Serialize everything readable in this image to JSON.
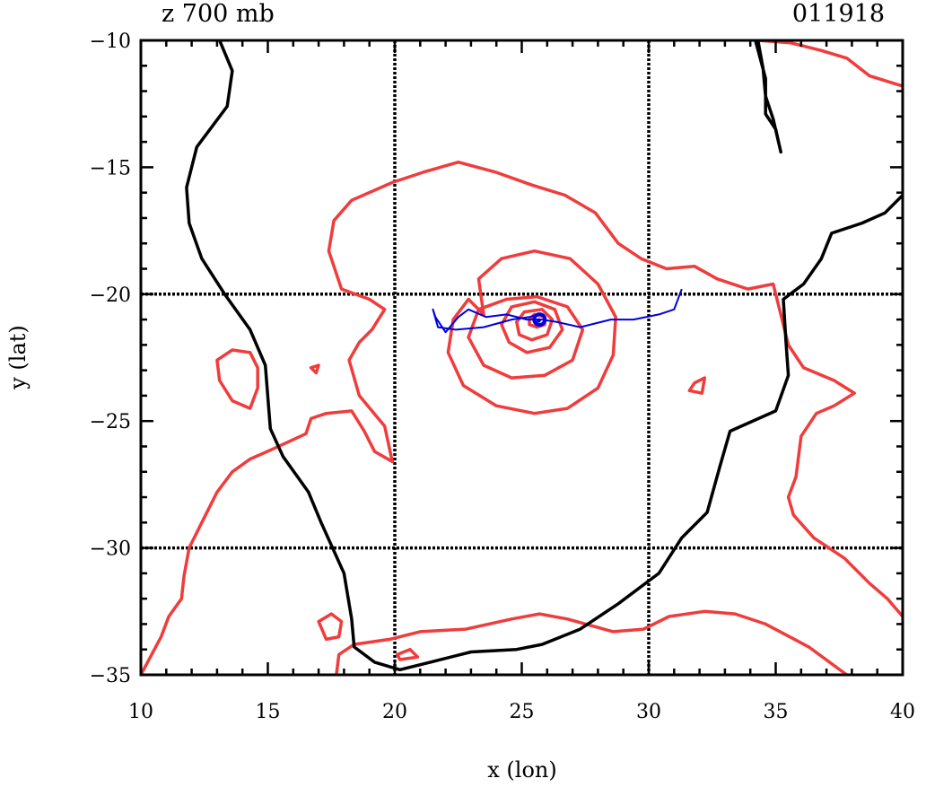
{
  "chart_data": {
    "type": "line",
    "title_left": "z 700 mb",
    "title_right": "011918",
    "xlabel": "x (lon)",
    "ylabel": "y (lat)",
    "xlim": [
      10,
      40
    ],
    "ylim": [
      -35,
      -10
    ],
    "xticks": [
      10,
      15,
      20,
      25,
      30,
      35,
      40
    ],
    "yticks": [
      -10,
      -15,
      -20,
      -25,
      -30,
      -35
    ],
    "grid_x": [
      20,
      30
    ],
    "grid_y": [
      -20,
      -30
    ],
    "colors": {
      "coast": "#000000",
      "contour": "#f03c3c",
      "track": "#0000dd",
      "grid": "#000000"
    },
    "coastline": [
      [
        [
          13.1,
          -10
        ],
        [
          13.6,
          -11.2
        ],
        [
          13.4,
          -12.6
        ],
        [
          12.2,
          -14.2
        ],
        [
          11.8,
          -15.8
        ],
        [
          11.9,
          -17.2
        ],
        [
          12.4,
          -18.6
        ],
        [
          13.3,
          -20
        ],
        [
          14.3,
          -21.4
        ],
        [
          14.9,
          -22.8
        ],
        [
          15.1,
          -25.3
        ],
        [
          15.6,
          -26.4
        ],
        [
          16.6,
          -27.8
        ],
        [
          17.1,
          -29
        ],
        [
          18.0,
          -31
        ],
        [
          18.3,
          -32.8
        ],
        [
          18.4,
          -33.9
        ],
        [
          19.2,
          -34.5
        ],
        [
          20.2,
          -34.8
        ],
        [
          21.4,
          -34.5
        ],
        [
          23.0,
          -34.1
        ],
        [
          24.8,
          -34.0
        ],
        [
          25.8,
          -33.8
        ],
        [
          27.3,
          -33.2
        ],
        [
          28.8,
          -32.2
        ],
        [
          30.4,
          -31
        ],
        [
          31.3,
          -29.6
        ],
        [
          32.3,
          -28.6
        ],
        [
          32.8,
          -26.8
        ],
        [
          33.2,
          -25.4
        ],
        [
          35.0,
          -24.6
        ],
        [
          35.5,
          -23.2
        ],
        [
          35.4,
          -21.8
        ],
        [
          35.3,
          -20.2
        ],
        [
          36.1,
          -19.6
        ],
        [
          36.8,
          -18.6
        ],
        [
          37.2,
          -17.6
        ],
        [
          38.4,
          -17.2
        ],
        [
          39.3,
          -16.8
        ],
        [
          40.0,
          -16.1
        ]
      ],
      [
        [
          34.2,
          -10
        ],
        [
          34.6,
          -11.5
        ],
        [
          34.6,
          -12.9
        ],
        [
          35.0,
          -13.5
        ],
        [
          35.2,
          -14.4
        ],
        [
          34.9,
          -13.1
        ],
        [
          34.6,
          -12.2
        ],
        [
          34.5,
          -11.1
        ],
        [
          34.3,
          -10
        ]
      ]
    ],
    "contours": [
      [
        [
          23.5,
          -20.8
        ],
        [
          23.3,
          -19.4
        ],
        [
          24.2,
          -18.6
        ],
        [
          25.5,
          -18.3
        ],
        [
          26.9,
          -18.6
        ],
        [
          28.0,
          -19.6
        ],
        [
          28.7,
          -20.9
        ],
        [
          28.6,
          -22.4
        ],
        [
          28.0,
          -23.7
        ],
        [
          26.8,
          -24.5
        ],
        [
          25.5,
          -24.7
        ],
        [
          24.0,
          -24.4
        ],
        [
          22.7,
          -23.6
        ],
        [
          22.1,
          -22.3
        ],
        [
          22.3,
          -21.0
        ],
        [
          22.9,
          -20.2
        ],
        [
          23.5,
          -20.8
        ]
      ],
      [
        [
          22.9,
          -21.7
        ],
        [
          23.3,
          -20.6
        ],
        [
          24.4,
          -20.2
        ],
        [
          25.6,
          -20.1
        ],
        [
          26.8,
          -20.5
        ],
        [
          27.4,
          -21.4
        ],
        [
          27.0,
          -22.6
        ],
        [
          25.9,
          -23.2
        ],
        [
          24.6,
          -23.3
        ],
        [
          23.5,
          -22.8
        ],
        [
          22.9,
          -21.7
        ]
      ],
      [
        [
          24.2,
          -21.2
        ],
        [
          24.6,
          -20.5
        ],
        [
          25.5,
          -20.3
        ],
        [
          26.3,
          -20.6
        ],
        [
          26.6,
          -21.4
        ],
        [
          26.1,
          -22.1
        ],
        [
          25.2,
          -22.3
        ],
        [
          24.5,
          -21.9
        ],
        [
          24.2,
          -21.2
        ]
      ],
      [
        [
          24.8,
          -21.1
        ],
        [
          25.1,
          -20.7
        ],
        [
          25.8,
          -20.6
        ],
        [
          26.2,
          -21.0
        ],
        [
          26.0,
          -21.6
        ],
        [
          25.4,
          -21.8
        ],
        [
          24.9,
          -21.6
        ],
        [
          24.8,
          -21.1
        ]
      ],
      [
        [
          25.3,
          -21.0
        ],
        [
          25.5,
          -20.8
        ],
        [
          25.9,
          -20.9
        ],
        [
          25.9,
          -21.2
        ],
        [
          25.6,
          -21.3
        ],
        [
          25.3,
          -21.2
        ],
        [
          25.3,
          -21.0
        ]
      ],
      [
        [
          19.9,
          -26.6
        ],
        [
          19.2,
          -26.2
        ],
        [
          18.8,
          -25.4
        ],
        [
          18.3,
          -24.6
        ],
        [
          17.3,
          -24.7
        ],
        [
          16.7,
          -24.9
        ],
        [
          16.5,
          -25.5
        ],
        [
          15.2,
          -26.1
        ],
        [
          14.3,
          -26.5
        ],
        [
          13.6,
          -27.0
        ],
        [
          13.0,
          -27.8
        ],
        [
          12.4,
          -29.0
        ],
        [
          11.9,
          -30.0
        ],
        [
          11.7,
          -31.1
        ],
        [
          11.6,
          -32.0
        ],
        [
          11.1,
          -32.7
        ],
        [
          10.8,
          -33.5
        ],
        [
          10.0,
          -35.0
        ]
      ],
      [
        [
          19.9,
          -26.6
        ],
        [
          19.6,
          -25.2
        ],
        [
          18.6,
          -24.0
        ],
        [
          18.2,
          -22.6
        ],
        [
          18.6,
          -21.9
        ],
        [
          19.1,
          -21.4
        ],
        [
          19.6,
          -20.6
        ],
        [
          19.0,
          -20.2
        ],
        [
          17.9,
          -19.8
        ],
        [
          17.4,
          -18.3
        ],
        [
          17.6,
          -17.1
        ],
        [
          18.3,
          -16.3
        ],
        [
          19.9,
          -15.6
        ],
        [
          21.1,
          -15.2
        ],
        [
          22.5,
          -14.8
        ],
        [
          24.0,
          -15.2
        ],
        [
          25.4,
          -15.7
        ],
        [
          26.7,
          -16.1
        ],
        [
          27.9,
          -16.8
        ],
        [
          28.8,
          -18.0
        ],
        [
          29.7,
          -18.6
        ],
        [
          30.7,
          -19.0
        ],
        [
          31.8,
          -18.9
        ],
        [
          32.7,
          -19.4
        ],
        [
          33.9,
          -19.8
        ],
        [
          34.9,
          -19.6
        ],
        [
          35.2,
          -20.8
        ],
        [
          35.5,
          -22.0
        ],
        [
          36.1,
          -22.9
        ],
        [
          37.3,
          -23.4
        ],
        [
          38.1,
          -23.9
        ],
        [
          37.3,
          -24.4
        ],
        [
          36.6,
          -24.7
        ],
        [
          36.0,
          -25.6
        ],
        [
          35.8,
          -27.2
        ],
        [
          35.5,
          -28.0
        ],
        [
          35.7,
          -28.7
        ],
        [
          36.5,
          -29.6
        ],
        [
          37.7,
          -30.4
        ],
        [
          38.7,
          -31.4
        ],
        [
          39.4,
          -32.0
        ],
        [
          40.0,
          -32.7
        ]
      ],
      [
        [
          17.7,
          -35.0
        ],
        [
          17.8,
          -34.2
        ],
        [
          18.4,
          -33.8
        ],
        [
          19.8,
          -33.6
        ],
        [
          21.0,
          -33.3
        ],
        [
          22.8,
          -33.2
        ],
        [
          24.6,
          -32.8
        ],
        [
          25.7,
          -32.6
        ],
        [
          26.8,
          -32.8
        ],
        [
          28.6,
          -33.3
        ],
        [
          29.8,
          -33.2
        ],
        [
          30.8,
          -32.7
        ],
        [
          32.2,
          -32.5
        ],
        [
          33.4,
          -32.6
        ],
        [
          34.6,
          -33.0
        ],
        [
          36.3,
          -33.9
        ],
        [
          37.8,
          -35.0
        ]
      ],
      [
        [
          34.3,
          -10.0
        ],
        [
          35.6,
          -10.1
        ],
        [
          36.8,
          -10.4
        ],
        [
          37.8,
          -10.7
        ],
        [
          38.7,
          -11.4
        ],
        [
          40.0,
          -11.8
        ]
      ],
      [
        [
          14.3,
          -22.3
        ],
        [
          13.6,
          -22.2
        ],
        [
          13.0,
          -22.6
        ],
        [
          13.1,
          -23.4
        ],
        [
          13.6,
          -24.2
        ],
        [
          14.3,
          -24.5
        ],
        [
          14.6,
          -23.7
        ],
        [
          14.6,
          -22.9
        ],
        [
          14.3,
          -22.3
        ]
      ],
      [
        [
          17.5,
          -32.6
        ],
        [
          17.0,
          -32.9
        ],
        [
          17.3,
          -33.6
        ],
        [
          17.8,
          -33.5
        ],
        [
          17.9,
          -32.9
        ],
        [
          17.5,
          -32.6
        ]
      ],
      [
        [
          20.1,
          -34.2
        ],
        [
          20.6,
          -34.0
        ],
        [
          20.9,
          -34.3
        ],
        [
          20.2,
          -34.4
        ],
        [
          20.1,
          -34.2
        ]
      ],
      [
        [
          31.8,
          -23.5
        ],
        [
          32.2,
          -23.3
        ],
        [
          32.1,
          -23.9
        ],
        [
          31.6,
          -23.8
        ],
        [
          31.8,
          -23.5
        ]
      ],
      [
        [
          16.7,
          -22.9
        ],
        [
          17.0,
          -22.8
        ],
        [
          16.9,
          -23.1
        ],
        [
          16.7,
          -22.9
        ]
      ]
    ],
    "track": [
      [
        31.3,
        -19.8
      ],
      [
        31.0,
        -20.6
      ],
      [
        30.4,
        -20.8
      ],
      [
        29.4,
        -21.0
      ],
      [
        28.5,
        -21.0
      ],
      [
        27.3,
        -21.3
      ],
      [
        26.4,
        -21.1
      ],
      [
        25.8,
        -21.0
      ],
      [
        25.2,
        -21.0
      ],
      [
        24.4,
        -20.8
      ],
      [
        23.6,
        -20.9
      ],
      [
        22.9,
        -20.6
      ],
      [
        22.5,
        -20.9
      ],
      [
        22.0,
        -21.5
      ],
      [
        21.6,
        -20.9
      ],
      [
        21.5,
        -20.6
      ],
      [
        21.7,
        -21.3
      ],
      [
        22.4,
        -21.4
      ],
      [
        23.5,
        -21.3
      ],
      [
        24.6,
        -21.0
      ],
      [
        25.3,
        -20.9
      ],
      [
        25.6,
        -20.8
      ]
    ],
    "track_eye": [
      25.7,
      -21.0
    ]
  }
}
